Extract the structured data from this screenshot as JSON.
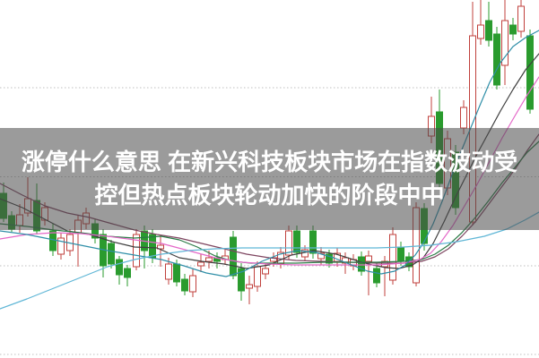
{
  "banner": {
    "line1": "涨停什么意思 在新兴科技板块市场在指数波动受",
    "line2": "控但热点板块轮动加快的阶段中中",
    "background_color": "rgba(72,72,72,0.55)",
    "text_color": "#ffffff"
  },
  "chart_data": {
    "type": "candlestick",
    "title": "",
    "xlabel": "",
    "ylabel": "",
    "axes_visible": false,
    "coordinate_space": "screen pixels 601x400, y increases downward",
    "grid": {
      "dotted_lines_y": [
        98,
        197.5,
        297,
        396
      ],
      "color": "#bfbfbf"
    },
    "colors": {
      "up": "#c0403c",
      "down": "#2a9b2e",
      "hollow_fill": "#ffffff"
    },
    "candles": [
      [
        4,
        "d",
        204,
        216,
        244,
        248
      ],
      [
        13,
        "d",
        236,
        241,
        256,
        259
      ],
      [
        22,
        "u",
        228,
        240,
        252,
        260
      ],
      [
        31,
        "u",
        198,
        222,
        238,
        242
      ],
      [
        41,
        "d",
        205,
        224,
        258,
        262
      ],
      [
        50,
        "u",
        226,
        232,
        246,
        252
      ],
      [
        59,
        "d",
        250,
        258,
        280,
        286
      ],
      [
        68,
        "u",
        260,
        266,
        284,
        290
      ],
      [
        78,
        "u",
        256,
        262,
        280,
        286
      ],
      [
        87,
        "u",
        240,
        246,
        260,
        298
      ],
      [
        96,
        "u",
        232,
        238,
        250,
        256
      ],
      [
        106,
        "d",
        244,
        250,
        266,
        272
      ],
      [
        115,
        "d",
        256,
        262,
        297,
        310
      ],
      [
        124,
        "d",
        268,
        272,
        295,
        300
      ],
      [
        133,
        "d",
        286,
        290,
        307,
        318
      ],
      [
        142,
        "d",
        296,
        300,
        310,
        320
      ],
      [
        152,
        "u",
        256,
        262,
        298,
        302
      ],
      [
        161,
        "d",
        252,
        258,
        280,
        300
      ],
      [
        170,
        "d",
        256,
        262,
        288,
        294
      ],
      [
        179,
        "u",
        262,
        274,
        278,
        298
      ],
      [
        188,
        "u",
        288,
        295,
        312,
        318
      ],
      [
        197,
        "d",
        290,
        295,
        315,
        320
      ],
      [
        206,
        "d",
        306,
        312,
        325,
        330
      ],
      [
        215,
        "u",
        300,
        308,
        326,
        332
      ],
      [
        224,
        "u",
        284,
        293,
        297,
        304
      ],
      [
        233,
        "u",
        280,
        288,
        292,
        300
      ],
      [
        242,
        "d",
        282,
        288,
        292,
        300
      ],
      [
        251,
        "u",
        278,
        286,
        290,
        296
      ],
      [
        260,
        "d",
        258,
        265,
        308,
        312
      ],
      [
        269,
        "d",
        294,
        300,
        325,
        336
      ],
      [
        278,
        "u",
        308,
        318,
        322,
        340
      ],
      [
        287,
        "u",
        292,
        298,
        320,
        326
      ],
      [
        296,
        "u",
        294,
        300,
        306,
        312
      ],
      [
        305,
        "u",
        282,
        288,
        292,
        298
      ],
      [
        313,
        "u",
        276,
        282,
        295,
        300
      ],
      [
        322,
        "u",
        252,
        258,
        285,
        290
      ],
      [
        331,
        "d",
        252,
        258,
        282,
        288
      ],
      [
        340,
        "u",
        274,
        279,
        287,
        292
      ],
      [
        349,
        "d",
        252,
        258,
        283,
        289
      ],
      [
        358,
        "u",
        276,
        283,
        289,
        296
      ],
      [
        367,
        "d",
        279,
        284,
        294,
        299
      ],
      [
        376,
        "u",
        277,
        283,
        292,
        298
      ],
      [
        385,
        "u",
        282,
        288,
        294,
        306
      ],
      [
        394,
        "u",
        284,
        290,
        297,
        302
      ],
      [
        403,
        "d",
        281,
        287,
        303,
        308
      ],
      [
        411,
        "u",
        280,
        286,
        292,
        330
      ],
      [
        420,
        "d",
        294,
        300,
        316,
        321
      ],
      [
        429,
        "u",
        286,
        292,
        298,
        331
      ],
      [
        438,
        "u",
        254,
        262,
        313,
        318
      ],
      [
        447,
        "d",
        270,
        276,
        292,
        297
      ],
      [
        456,
        "d",
        282,
        287,
        298,
        303
      ],
      [
        464,
        "u",
        226,
        232,
        316,
        320
      ],
      [
        473,
        "d",
        227,
        233,
        272,
        280
      ],
      [
        481,
        "u",
        108,
        130,
        152,
        160
      ],
      [
        490,
        "d",
        100,
        125,
        205,
        212
      ],
      [
        499,
        "u",
        146,
        155,
        210,
        218
      ],
      [
        508,
        "d",
        162,
        170,
        232,
        240
      ],
      [
        517,
        "u",
        112,
        120,
        143,
        150
      ],
      [
        527,
        "u",
        2,
        40,
        248,
        252
      ],
      [
        536,
        "u",
        0,
        28,
        43,
        50
      ],
      [
        545,
        "d",
        2,
        23,
        45,
        52
      ],
      [
        554,
        "d",
        30,
        38,
        95,
        100
      ],
      [
        563,
        "u",
        0,
        23,
        73,
        95
      ],
      [
        572,
        "d",
        20,
        28,
        38,
        45
      ],
      [
        581,
        "u",
        0,
        7,
        35,
        42
      ],
      [
        591,
        "d",
        33,
        40,
        122,
        127
      ]
    ],
    "ma_lines": [
      {
        "name": "ma-line-maroon",
        "color": "#7e4560",
        "points": [
          [
            0,
            205
          ],
          [
            25,
            218
          ],
          [
            50,
            230
          ],
          [
            75,
            238
          ],
          [
            100,
            243
          ],
          [
            125,
            250
          ],
          [
            150,
            257
          ],
          [
            175,
            262
          ],
          [
            200,
            266
          ],
          [
            225,
            272
          ],
          [
            250,
            278
          ],
          [
            275,
            284
          ],
          [
            300,
            288
          ],
          [
            330,
            291
          ],
          [
            360,
            292
          ],
          [
            390,
            293
          ],
          [
            420,
            294
          ],
          [
            450,
            294
          ],
          [
            470,
            292
          ],
          [
            485,
            287
          ],
          [
            500,
            278
          ],
          [
            515,
            264
          ],
          [
            530,
            248
          ],
          [
            545,
            228
          ],
          [
            560,
            208
          ],
          [
            575,
            188
          ],
          [
            588,
            168
          ],
          [
            601,
            150
          ]
        ]
      },
      {
        "name": "ma-line-black",
        "color": "#3f3f3f",
        "points": [
          [
            0,
            222
          ],
          [
            25,
            232
          ],
          [
            50,
            245
          ],
          [
            75,
            258
          ],
          [
            100,
            262
          ],
          [
            125,
            270
          ],
          [
            150,
            276
          ],
          [
            175,
            277
          ],
          [
            200,
            288
          ],
          [
            225,
            292
          ],
          [
            250,
            295
          ],
          [
            275,
            300
          ],
          [
            300,
            296
          ],
          [
            325,
            285
          ],
          [
            350,
            280
          ],
          [
            375,
            284
          ],
          [
            400,
            292
          ],
          [
            415,
            296
          ],
          [
            430,
            299
          ],
          [
            445,
            300
          ],
          [
            460,
            296
          ],
          [
            472,
            288
          ],
          [
            483,
            272
          ],
          [
            495,
            248
          ],
          [
            508,
            220
          ],
          [
            520,
            196
          ],
          [
            532,
            172
          ],
          [
            545,
            148
          ],
          [
            558,
            124
          ],
          [
            572,
            100
          ],
          [
            586,
            78
          ],
          [
            601,
            60
          ]
        ]
      },
      {
        "name": "ma-line-dark-green",
        "color": "#2a7a45",
        "points": [
          [
            0,
            250
          ],
          [
            30,
            253
          ],
          [
            60,
            257
          ],
          [
            90,
            260
          ],
          [
            120,
            264
          ],
          [
            150,
            266
          ],
          [
            180,
            264
          ],
          [
            200,
            268
          ],
          [
            220,
            276
          ],
          [
            240,
            286
          ],
          [
            260,
            292
          ],
          [
            280,
            294
          ],
          [
            300,
            294
          ],
          [
            330,
            294
          ],
          [
            360,
            293
          ],
          [
            390,
            293
          ],
          [
            420,
            293
          ],
          [
            450,
            292
          ],
          [
            470,
            290
          ],
          [
            485,
            284
          ],
          [
            500,
            274
          ],
          [
            515,
            260
          ],
          [
            530,
            243
          ],
          [
            545,
            224
          ],
          [
            560,
            204
          ],
          [
            575,
            186
          ],
          [
            588,
            170
          ],
          [
            601,
            158
          ]
        ]
      },
      {
        "name": "ma-line-magenta",
        "color": "#e468c8",
        "points": [
          [
            0,
            267
          ],
          [
            30,
            262
          ],
          [
            60,
            260
          ],
          [
            90,
            261
          ],
          [
            120,
            264
          ],
          [
            150,
            268
          ],
          [
            180,
            272
          ],
          [
            210,
            280
          ],
          [
            240,
            288
          ],
          [
            270,
            293
          ],
          [
            300,
            295
          ],
          [
            330,
            296
          ],
          [
            360,
            296
          ],
          [
            390,
            296
          ],
          [
            420,
            296
          ],
          [
            450,
            294
          ],
          [
            468,
            290
          ],
          [
            480,
            283
          ],
          [
            492,
            270
          ],
          [
            505,
            252
          ],
          [
            518,
            230
          ],
          [
            532,
            206
          ],
          [
            546,
            180
          ],
          [
            560,
            154
          ],
          [
            575,
            128
          ],
          [
            588,
            106
          ],
          [
            601,
            86
          ]
        ]
      },
      {
        "name": "ma-line-teal",
        "color": "#2f8fa8",
        "points": [
          [
            0,
            258
          ],
          [
            30,
            262
          ],
          [
            60,
            268
          ],
          [
            90,
            274
          ],
          [
            120,
            280
          ],
          [
            150,
            285
          ],
          [
            180,
            290
          ],
          [
            205,
            297
          ],
          [
            230,
            305
          ],
          [
            252,
            309
          ],
          [
            272,
            303
          ],
          [
            292,
            292
          ],
          [
            312,
            284
          ],
          [
            332,
            280
          ],
          [
            352,
            282
          ],
          [
            372,
            288
          ],
          [
            392,
            296
          ],
          [
            410,
            303
          ],
          [
            425,
            306
          ],
          [
            440,
            303
          ],
          [
            452,
            296
          ],
          [
            463,
            285
          ],
          [
            473,
            270
          ],
          [
            483,
            250
          ],
          [
            493,
            225
          ],
          [
            503,
            198
          ],
          [
            513,
            172
          ],
          [
            524,
            145
          ],
          [
            535,
            118
          ],
          [
            546,
            92
          ],
          [
            558,
            70
          ],
          [
            572,
            52
          ],
          [
            586,
            42
          ],
          [
            601,
            34
          ]
        ]
      },
      {
        "name": "ma-line-light-cyan",
        "color": "#5fb6d6",
        "points": [
          [
            0,
            345
          ],
          [
            30,
            334
          ],
          [
            60,
            322
          ],
          [
            90,
            310
          ],
          [
            120,
            298
          ],
          [
            150,
            290
          ],
          [
            180,
            284
          ],
          [
            210,
            280
          ],
          [
            240,
            278
          ],
          [
            270,
            277
          ],
          [
            300,
            277
          ],
          [
            340,
            277
          ],
          [
            380,
            277
          ],
          [
            420,
            277
          ],
          [
            450,
            276
          ],
          [
            480,
            274
          ],
          [
            510,
            270
          ],
          [
            540,
            264
          ],
          [
            565,
            256
          ],
          [
            585,
            246
          ],
          [
            601,
            237
          ]
        ]
      }
    ]
  }
}
